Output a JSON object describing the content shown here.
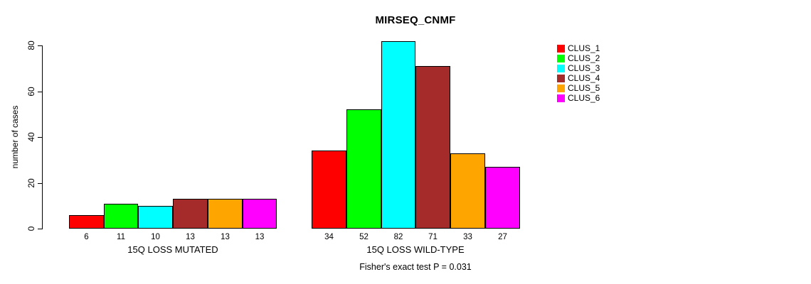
{
  "chart_data": {
    "type": "bar",
    "title": "MIRSEQ_CNMF",
    "ylabel": "number of cases",
    "yticks": [
      0,
      20,
      40,
      60,
      80
    ],
    "ylim": [
      0,
      82
    ],
    "grid": false,
    "legend_position": "top-right",
    "bar_border_color": "#000000",
    "groups": [
      {
        "label": "15Q LOSS MUTATED",
        "values": [
          6,
          11,
          10,
          13,
          13,
          13
        ]
      },
      {
        "label": "15Q LOSS WILD-TYPE",
        "values": [
          34,
          52,
          82,
          71,
          33,
          27
        ]
      }
    ],
    "series_colors": [
      "#FF0000",
      "#00FF00",
      "#00FFFF",
      "#A52A2A",
      "#FFA500",
      "#FF00FF"
    ],
    "legend": [
      {
        "label": "CLUS_1",
        "color": "#FF0000"
      },
      {
        "label": "CLUS_2",
        "color": "#00FF00"
      },
      {
        "label": "CLUS_3",
        "color": "#00FFFF"
      },
      {
        "label": "CLUS_4",
        "color": "#A52A2A"
      },
      {
        "label": "CLUS_5",
        "color": "#FFA500"
      },
      {
        "label": "CLUS_6",
        "color": "#FF00FF"
      }
    ],
    "annotation": "Fisher's exact test P = 0.031"
  }
}
